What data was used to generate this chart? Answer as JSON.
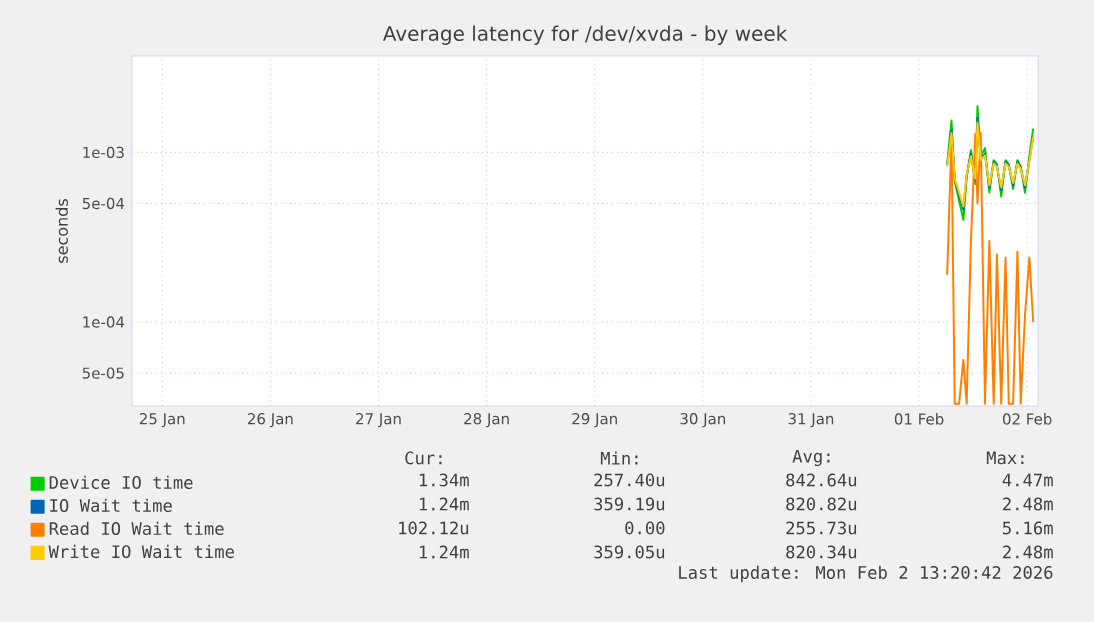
{
  "chart_data": {
    "type": "line",
    "title": "Average latency for /dev/xvda - by week",
    "ylabel": "seconds",
    "x": [
      "2026-02-01T18:14",
      "2026-02-01T19:12",
      "2026-02-01T19:55",
      "2026-02-01T20:53",
      "2026-02-01T21:50",
      "2026-02-01T22:34",
      "2026-02-01T23:31",
      "2026-02-02T00:29",
      "2026-02-02T00:58",
      "2026-02-02T01:41",
      "2026-02-02T02:38",
      "2026-02-02T03:36",
      "2026-02-02T04:34",
      "2026-02-02T05:17",
      "2026-02-02T06:14",
      "2026-02-02T07:12",
      "2026-02-02T07:55",
      "2026-02-02T08:53",
      "2026-02-02T09:50",
      "2026-02-02T10:34",
      "2026-02-02T11:31",
      "2026-02-02T12:29",
      "2026-02-02T13:20"
    ],
    "series": [
      {
        "name": "Device IO time",
        "color": "#00cc00",
        "values": [
          0.00085,
          0.00154,
          0.00068,
          0.00052,
          0.0004,
          0.00072,
          0.00103,
          0.00065,
          0.00187,
          0.00095,
          0.00106,
          0.00058,
          0.0009,
          0.00085,
          0.00055,
          0.0009,
          0.00085,
          0.00061,
          0.0009,
          0.00083,
          0.00058,
          0.00095,
          0.00138
        ]
      },
      {
        "name": "IO Wait time",
        "color": "#0066b3",
        "values": [
          0.00084,
          0.00135,
          0.00069,
          0.00056,
          0.00046,
          0.00073,
          0.00098,
          0.00068,
          0.0016,
          0.00092,
          0.00098,
          0.00062,
          0.00088,
          0.00083,
          0.0006,
          0.00088,
          0.00083,
          0.00064,
          0.00088,
          0.00081,
          0.00062,
          0.0009,
          0.00124
        ]
      },
      {
        "name": "Read IO Wait time",
        "color": "#ff8000",
        "values": [
          0.00019,
          0.0012,
          3.3e-05,
          3.3e-05,
          6e-05,
          3.3e-05,
          0.0003,
          0.00128,
          0.0005,
          0.0013,
          3.3e-05,
          0.0003,
          3.3e-05,
          0.00025,
          3.3e-05,
          0.00024,
          3.3e-05,
          3.3e-05,
          0.00026,
          3.3e-05,
          0.00011,
          0.00024,
          0.0001
        ]
      },
      {
        "name": "Write IO Wait time",
        "color": "#ffcc00",
        "values": [
          0.00083,
          0.0013,
          0.0007,
          0.00058,
          0.00048,
          0.00074,
          0.00095,
          0.0007,
          0.0015,
          0.0009,
          0.00096,
          0.00064,
          0.00086,
          0.00082,
          0.00062,
          0.00086,
          0.00082,
          0.00066,
          0.00086,
          0.0008,
          0.00064,
          0.00088,
          0.00124
        ]
      }
    ],
    "xlim": [
      "2026-01-25T05:17",
      "2026-02-02T14:24"
    ],
    "xticks": [
      {
        "value": "2026-01-25T12:00",
        "label": "25 Jan"
      },
      {
        "value": "2026-01-26T12:00",
        "label": "26 Jan"
      },
      {
        "value": "2026-01-27T12:00",
        "label": "27 Jan"
      },
      {
        "value": "2026-01-28T12:00",
        "label": "28 Jan"
      },
      {
        "value": "2026-01-29T12:00",
        "label": "29 Jan"
      },
      {
        "value": "2026-01-30T12:00",
        "label": "30 Jan"
      },
      {
        "value": "2026-01-31T12:00",
        "label": "31 Jan"
      },
      {
        "value": "2026-02-01T12:00",
        "label": "01 Feb"
      },
      {
        "value": "2026-02-02T12:00",
        "label": "02 Feb"
      }
    ],
    "ylim": [
      3.2e-05,
      0.0037
    ],
    "yticks": [
      {
        "value": 5e-05,
        "label": "5e-05"
      },
      {
        "value": 0.0001,
        "label": "1e-04"
      },
      {
        "value": 0.0005,
        "label": "5e-04"
      },
      {
        "value": 0.001,
        "label": "1e-03"
      }
    ],
    "log": "y",
    "grid": true,
    "legend": "bottom",
    "marker": "none",
    "line_style": "solid",
    "annotations": [
      "Cur:",
      "Min:",
      "Avg:",
      "Max:",
      "1.34m",
      "257.40u",
      "842.64u",
      "4.47m",
      "1.24m",
      "359.19u",
      "820.82u",
      "2.48m",
      "102.12u",
      "0.00",
      "255.73u",
      "5.16m",
      "1.24m",
      "359.05u",
      "820.34u",
      "2.48m",
      "Last update: Mon Feb  2 13:20:42 2026"
    ]
  }
}
